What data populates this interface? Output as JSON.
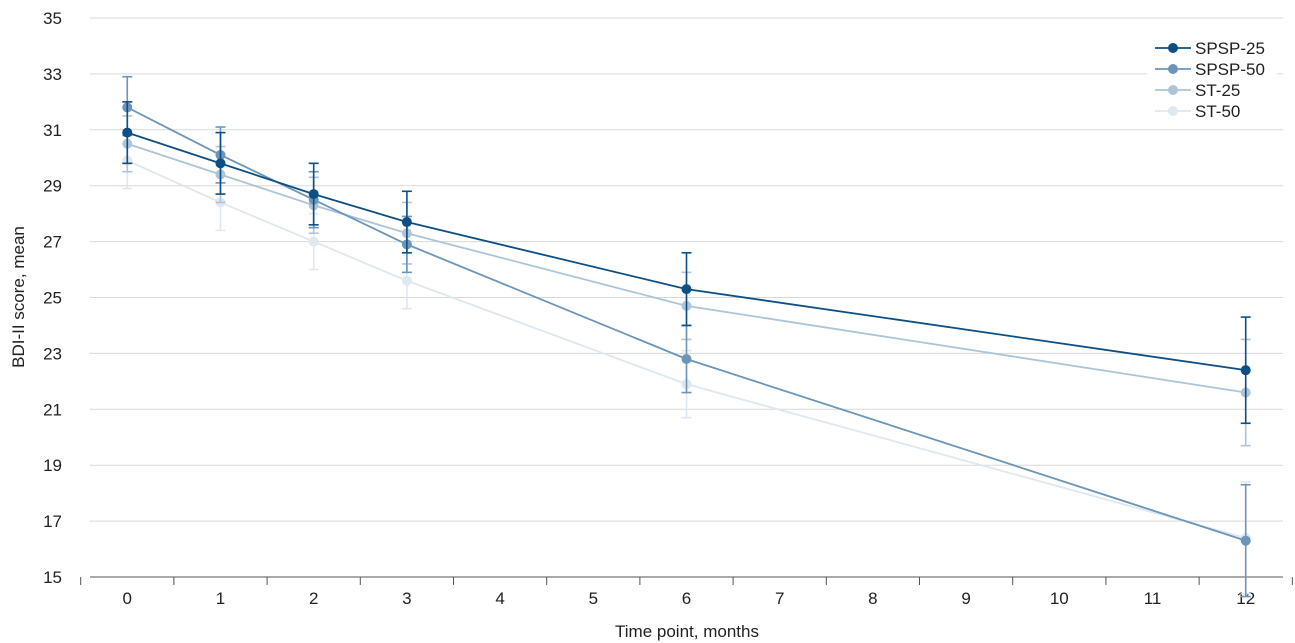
{
  "chart_data": {
    "type": "line",
    "title": "",
    "xlabel": "Time point, months",
    "ylabel": "BDI-II score, mean",
    "xlim": [
      -0.4,
      12.4
    ],
    "ylim": [
      15,
      35
    ],
    "x_ticks": [
      0,
      1,
      2,
      3,
      4,
      5,
      6,
      7,
      8,
      9,
      10,
      11,
      12
    ],
    "y_ticks": [
      15,
      17,
      19,
      21,
      23,
      25,
      27,
      29,
      31,
      33,
      35
    ],
    "grid": "horizontal",
    "legend_position": "top-right",
    "series": [
      {
        "name": "SPSP-25",
        "color": "#0d4f84",
        "x": [
          0,
          1,
          2,
          3,
          6,
          12
        ],
        "y": [
          30.9,
          29.8,
          28.7,
          27.7,
          25.3,
          22.4
        ],
        "err_low": [
          29.8,
          28.7,
          27.6,
          26.6,
          24.0,
          20.5
        ],
        "err_high": [
          32.0,
          30.9,
          29.8,
          28.8,
          26.6,
          24.3
        ]
      },
      {
        "name": "SPSP-50",
        "color": "#6b95b9",
        "x": [
          0,
          1,
          2,
          3,
          6,
          12
        ],
        "y": [
          31.8,
          30.1,
          28.5,
          26.9,
          22.8,
          16.3
        ],
        "err_low": [
          30.8,
          29.1,
          27.5,
          25.9,
          21.6,
          14.3
        ],
        "err_high": [
          32.9,
          31.1,
          29.5,
          27.9,
          24.0,
          18.3
        ]
      },
      {
        "name": "ST-25",
        "color": "#aec4d8",
        "x": [
          0,
          1,
          2,
          3,
          6,
          12
        ],
        "y": [
          30.5,
          29.4,
          28.3,
          27.3,
          24.7,
          21.6
        ],
        "err_low": [
          29.5,
          28.4,
          27.3,
          26.2,
          23.5,
          19.7
        ],
        "err_high": [
          31.5,
          30.4,
          29.3,
          28.4,
          25.9,
          23.5
        ]
      },
      {
        "name": "ST-50",
        "color": "#dfe7ef",
        "x": [
          0,
          1,
          2,
          3,
          6,
          12
        ],
        "y": [
          29.9,
          28.4,
          27.0,
          25.6,
          21.9,
          16.4
        ],
        "err_low": [
          28.9,
          27.4,
          26.0,
          24.6,
          20.7,
          14.4
        ],
        "err_high": [
          30.9,
          29.4,
          28.0,
          26.6,
          23.1,
          18.4
        ]
      }
    ]
  }
}
